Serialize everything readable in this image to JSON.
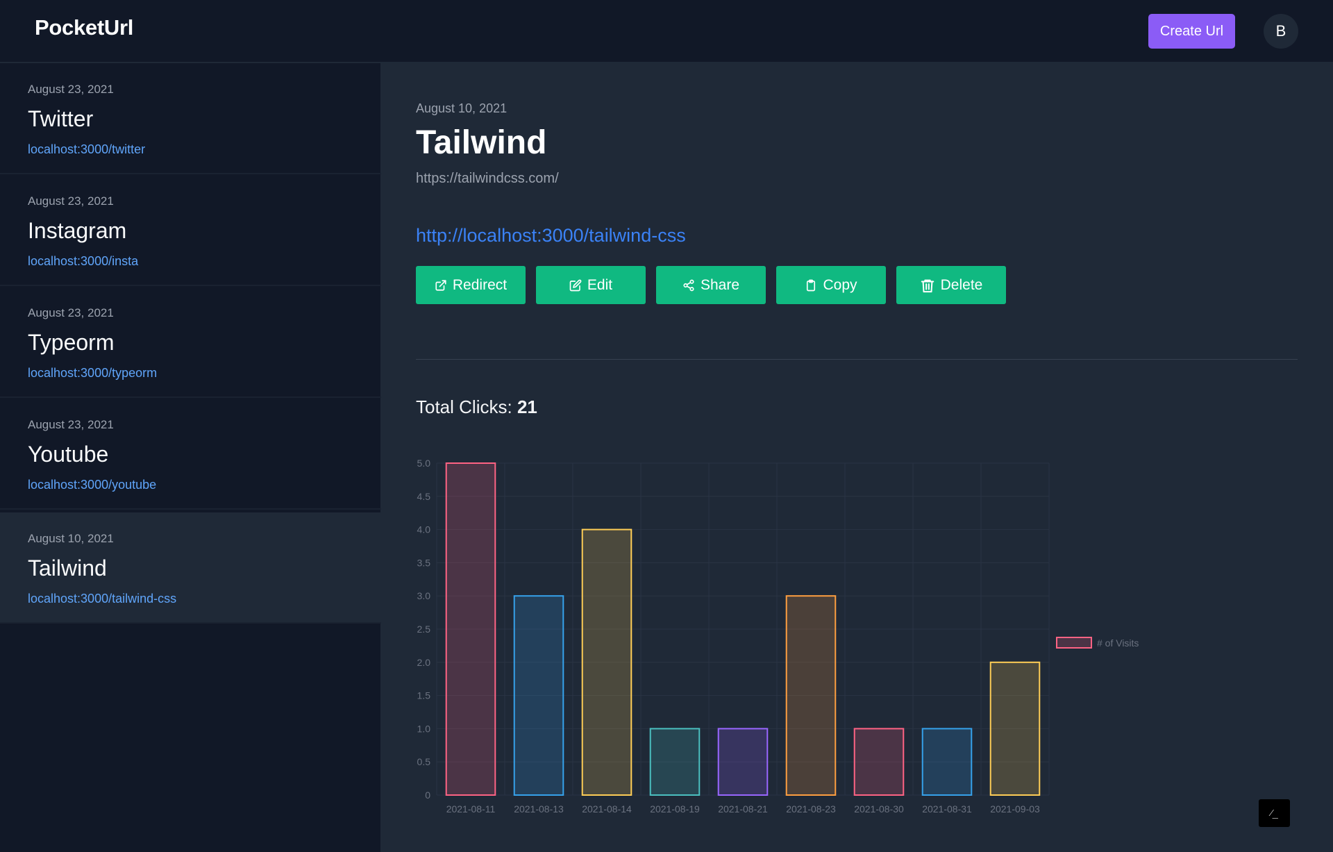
{
  "app": {
    "logo": "PocketUrl",
    "create_label": "Create Url",
    "avatar_initial": "B"
  },
  "sidebar": {
    "items": [
      {
        "date": "August 23, 2021",
        "title": "Twitter",
        "link": "localhost:3000/twitter",
        "active": false
      },
      {
        "date": "August 23, 2021",
        "title": "Instagram",
        "link": "localhost:3000/insta",
        "active": false
      },
      {
        "date": "August 23, 2021",
        "title": "Typeorm",
        "link": "localhost:3000/typeorm",
        "active": false
      },
      {
        "date": "August 23, 2021",
        "title": "Youtube",
        "link": "localhost:3000/youtube",
        "active": false
      },
      {
        "date": "August 10, 2021",
        "title": "Tailwind",
        "link": "localhost:3000/tailwind-css",
        "active": true
      }
    ]
  },
  "detail": {
    "date": "August 10, 2021",
    "title": "Tailwind",
    "url": "https://tailwindcss.com/",
    "short_url": "http://localhost:3000/tailwind-css",
    "actions": [
      {
        "label": "Redirect",
        "icon": "external-link-icon"
      },
      {
        "label": "Edit",
        "icon": "edit-icon"
      },
      {
        "label": "Share",
        "icon": "share-icon"
      },
      {
        "label": "Copy",
        "icon": "clipboard-icon"
      },
      {
        "label": "Delete",
        "icon": "trash-icon"
      }
    ],
    "total_clicks_label": "Total Clicks:",
    "total_clicks": "21"
  },
  "chart_data": {
    "type": "bar",
    "categories": [
      "2021-08-11",
      "2021-08-13",
      "2021-08-14",
      "2021-08-19",
      "2021-08-21",
      "2021-08-23",
      "2021-08-30",
      "2021-08-31",
      "2021-09-03"
    ],
    "series": [
      {
        "name": "# of Visits",
        "values": [
          5,
          3,
          4,
          1,
          1,
          3,
          1,
          1,
          2
        ]
      }
    ],
    "ylim": [
      0,
      5
    ],
    "yticks": [
      "0",
      "0.5",
      "1.0",
      "1.5",
      "2.0",
      "2.5",
      "3.0",
      "3.5",
      "4.0",
      "4.5",
      "5.0"
    ],
    "bar_colors": [
      "#ff6384",
      "#36a2eb",
      "#ffce56",
      "#4bc0c0",
      "#9966ff",
      "#ff9f40",
      "#ff6384",
      "#36a2eb",
      "#ffce56"
    ],
    "grid": true,
    "legend": "right"
  }
}
